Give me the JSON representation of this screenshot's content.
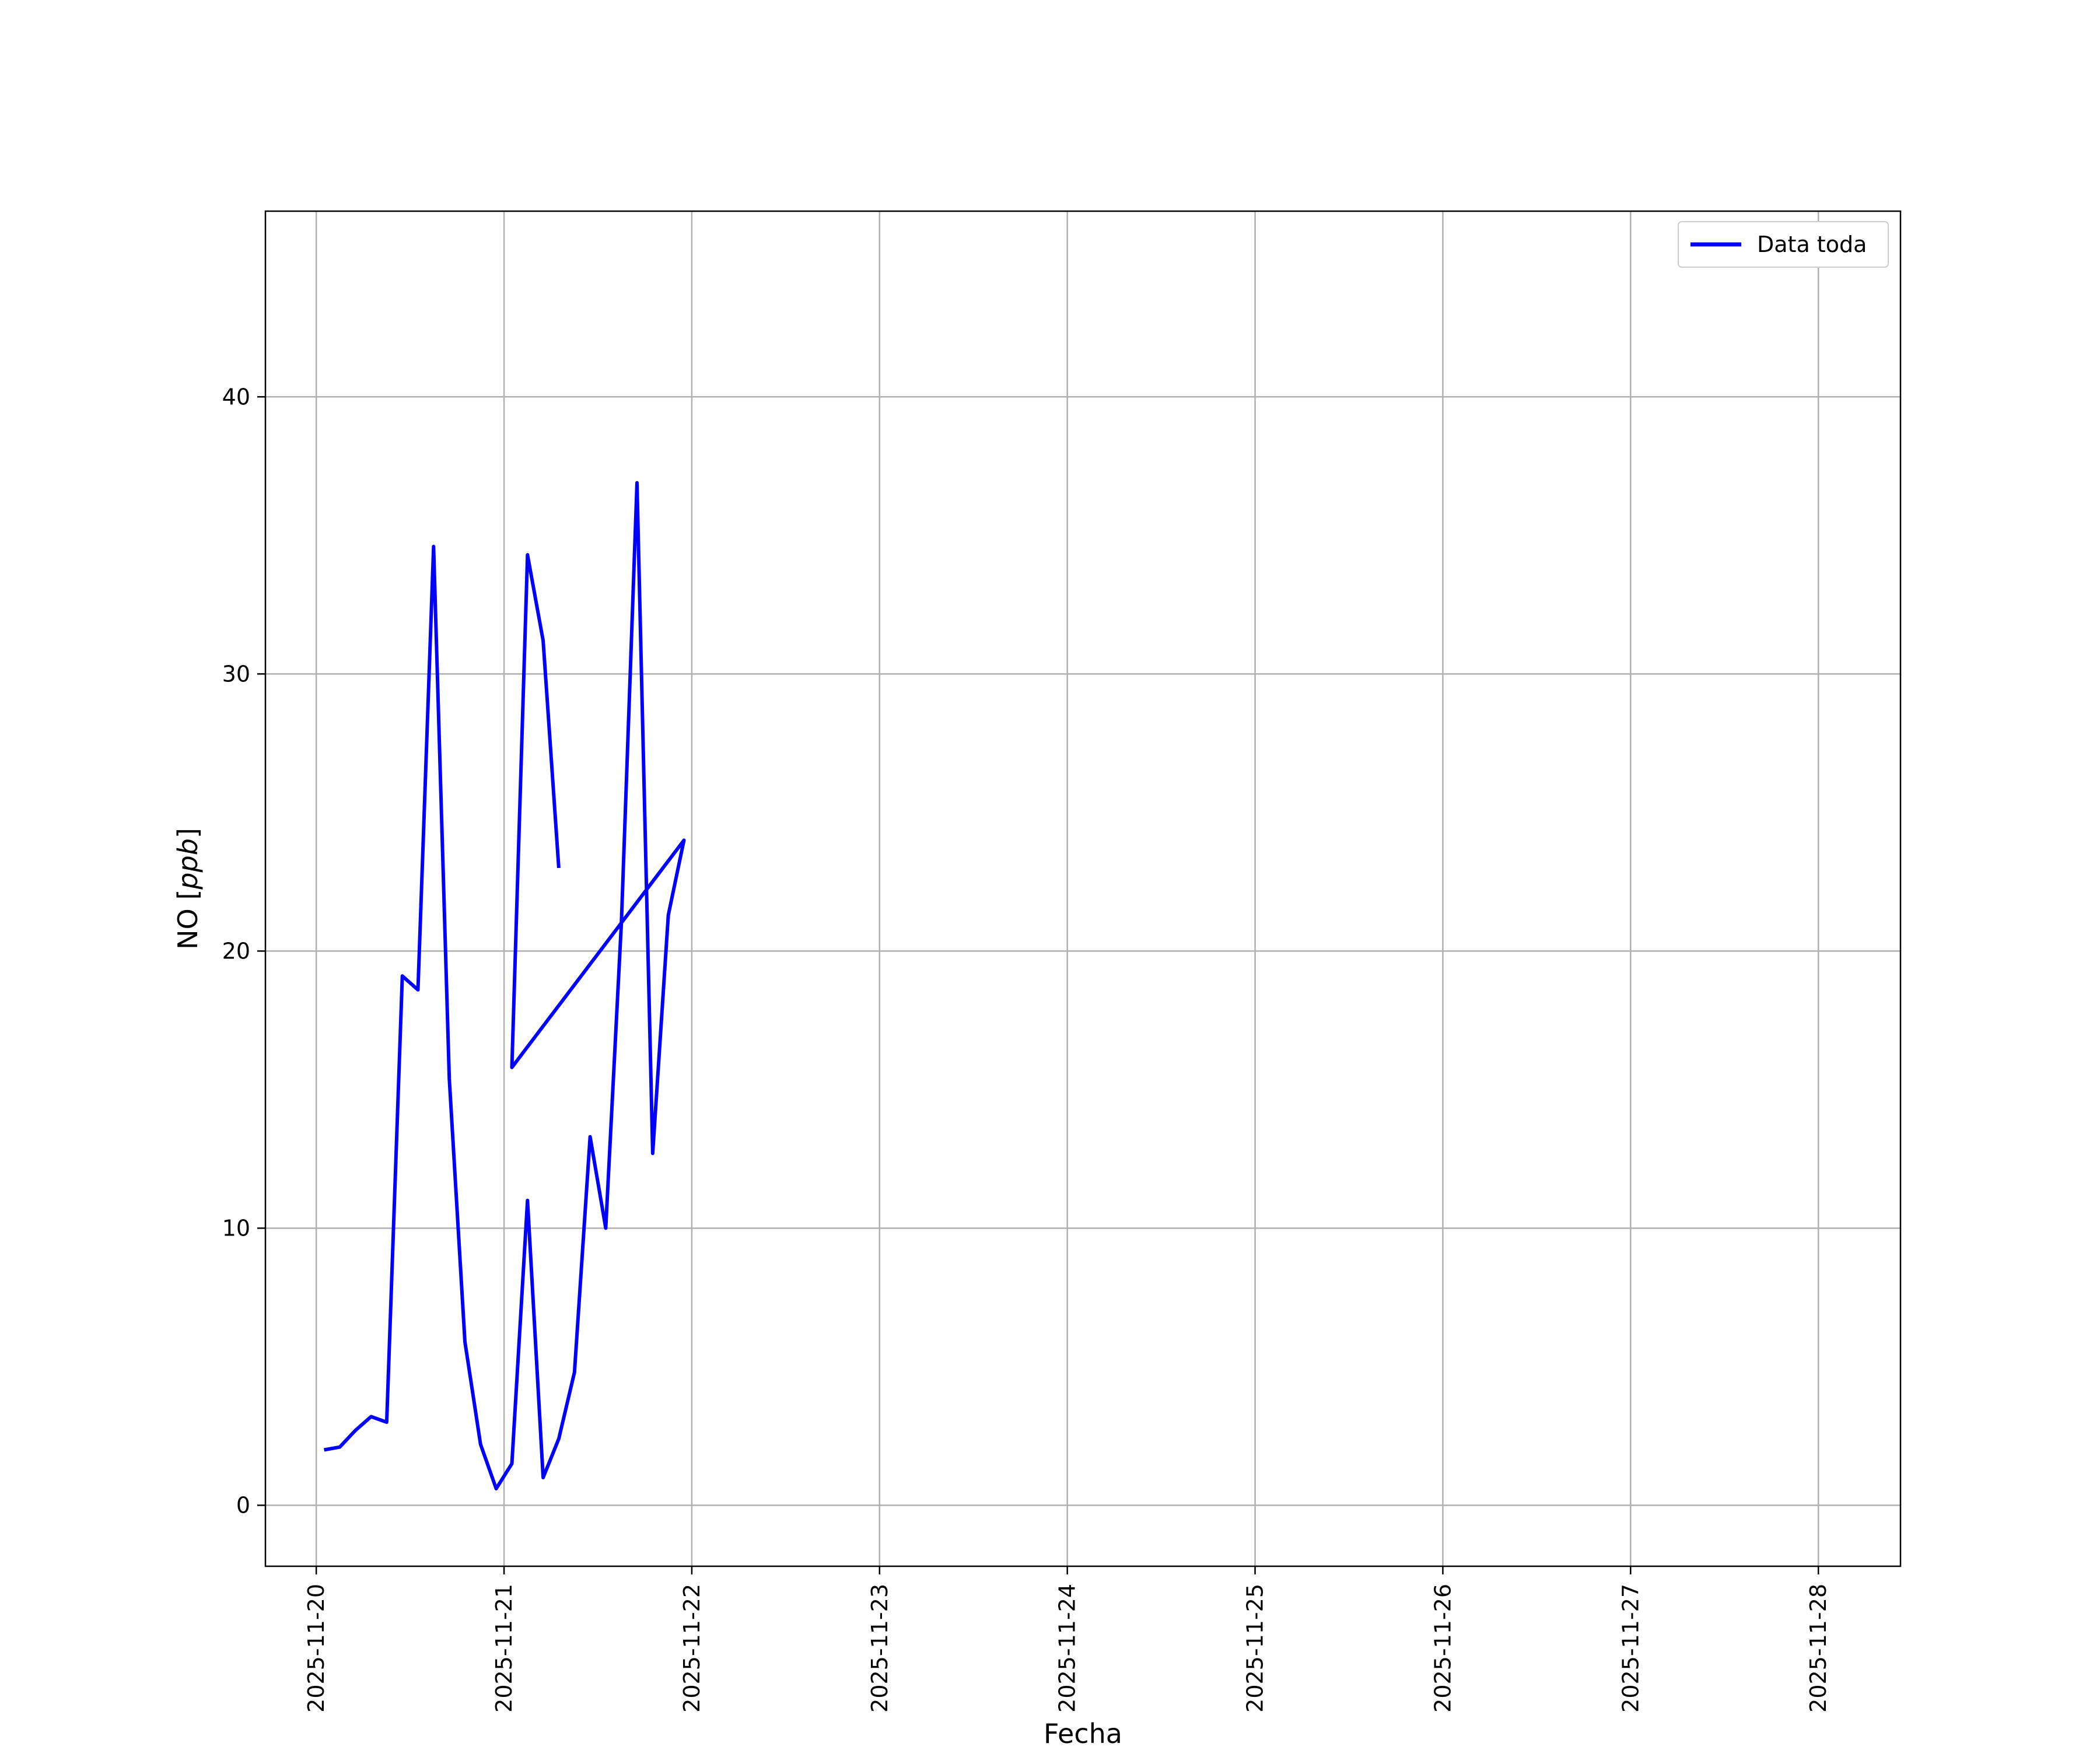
{
  "chart_data": {
    "type": "line",
    "title": "",
    "xlabel": "Fecha",
    "ylabel": "NO [ppb]",
    "ylabel_main": "NO [",
    "ylabel_unit": "ppb",
    "ylabel_close": "]",
    "xlim": [
      "2025-11-19T17:30",
      "2025-11-28T10:30"
    ],
    "ylim": [
      -2.2,
      46.7
    ],
    "yticks": [
      0,
      10,
      20,
      30,
      40
    ],
    "ytick_labels": [
      "0",
      "10",
      "20",
      "30",
      "40"
    ],
    "xticks": [
      "2025-11-20",
      "2025-11-21",
      "2025-11-22",
      "2025-11-23",
      "2025-11-24",
      "2025-11-25",
      "2025-11-26",
      "2025-11-27",
      "2025-11-28"
    ],
    "grid": true,
    "legend": {
      "position": "top-right",
      "entries": [
        "Data toda"
      ]
    },
    "colors": {
      "series": "#0000ff",
      "grid": "#b0b0b0",
      "frame": "#000000"
    },
    "series": [
      {
        "name": "Data toda",
        "points": [
          [
            "2025-11-20T01:00",
            2.0
          ],
          [
            "2025-11-20T03:00",
            2.1
          ],
          [
            "2025-11-20T05:00",
            2.7
          ],
          [
            "2025-11-20T07:00",
            3.2
          ],
          [
            "2025-11-20T09:00",
            3.0
          ],
          [
            "2025-11-20T11:00",
            19.1
          ],
          [
            "2025-11-20T13:00",
            18.6
          ],
          [
            "2025-11-20T15:00",
            34.6
          ],
          [
            "2025-11-20T17:00",
            15.4
          ],
          [
            "2025-11-20T19:00",
            5.9
          ],
          [
            "2025-11-20T21:00",
            2.2
          ],
          [
            "2025-11-20T23:00",
            0.6
          ],
          [
            "2025-11-21T01:00",
            1.5
          ],
          [
            "2025-11-21T03:00",
            11.0
          ],
          [
            "2025-11-21T05:00",
            1.0
          ],
          [
            "2025-11-21T07:00",
            2.4
          ],
          [
            "2025-11-21T09:00",
            4.8
          ],
          [
            "2025-11-21T11:00",
            13.3
          ],
          [
            "2025-11-21T13:00",
            10.0
          ],
          [
            "2025-11-21T15:00",
            21.0
          ],
          [
            "2025-11-21T17:00",
            36.9
          ],
          [
            "2025-11-21T19:00",
            12.7
          ],
          [
            "2025-11-21T21:00",
            21.3
          ],
          [
            "2025-11-21T23:00",
            24.0
          ],
          [
            "2025-11-21T01:00",
            15.8
          ],
          [
            "2025-11-21T03:00",
            34.3
          ],
          [
            "2025-11-21T05:00",
            31.2
          ],
          [
            "2025-11-21T07:00",
            23.0
          ]
        ]
      }
    ]
  }
}
